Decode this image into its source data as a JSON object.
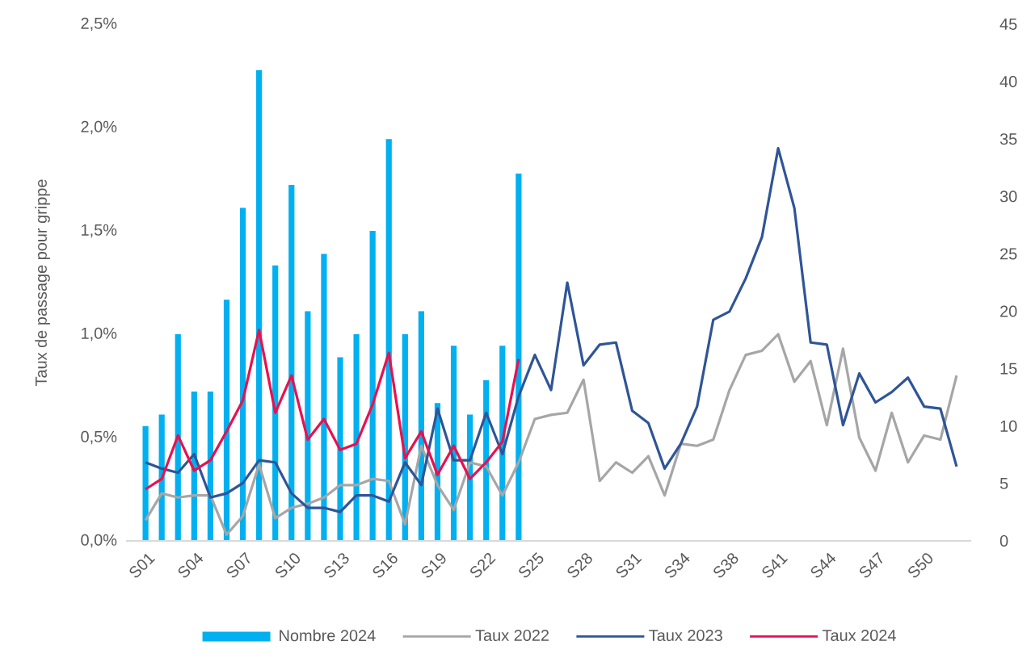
{
  "chart_data": {
    "type": "bar",
    "ylabel": "Taux de passage pour grippe",
    "categories": [
      "S01",
      null,
      null,
      "S04",
      null,
      null,
      "S07",
      null,
      null,
      "S10",
      null,
      null,
      "S13",
      null,
      null,
      "S16",
      null,
      null,
      "S19",
      null,
      null,
      "S22",
      null,
      null,
      "S25",
      null,
      null,
      "S28",
      null,
      null,
      "S31",
      null,
      null,
      "S34",
      null,
      null,
      "S38",
      null,
      null,
      "S41",
      null,
      null,
      "S44",
      null,
      null,
      "S47",
      null,
      null,
      "S50",
      null,
      null
    ],
    "ylim": [
      0,
      2.5
    ],
    "yticks": [
      {
        "value": 0,
        "label": "0,0%"
      },
      {
        "value": 0.5,
        "label": "0,5%"
      },
      {
        "value": 1.0,
        "label": "1,0%"
      },
      {
        "value": 1.5,
        "label": "1,5%"
      },
      {
        "value": 2.0,
        "label": "2,0%"
      },
      {
        "value": 2.5,
        "label": "2,5%"
      }
    ],
    "y2lim": [
      0,
      45
    ],
    "y2ticks": [
      0,
      5,
      10,
      15,
      20,
      25,
      30,
      35,
      40,
      45
    ],
    "legend": "bottom",
    "series": [
      {
        "name": "Nombre 2024",
        "axis": "y2",
        "color": "#00b0f0",
        "values": [
          10,
          11,
          18,
          13,
          13,
          21,
          29,
          41,
          24,
          31,
          20,
          25,
          16,
          18,
          27,
          35,
          18,
          20,
          12,
          17,
          11,
          14,
          17,
          32,
          null,
          null,
          null,
          null,
          null,
          null,
          null,
          null,
          null,
          null,
          null,
          null,
          null,
          null,
          null,
          null,
          null,
          null,
          null,
          null,
          null,
          null,
          null,
          null,
          null,
          null,
          null
        ]
      },
      {
        "name": "Taux 2022",
        "type": "line",
        "color": "#a6a6a6",
        "values": [
          0.1,
          0.23,
          0.21,
          0.22,
          0.22,
          0.03,
          0.12,
          0.37,
          0.11,
          0.16,
          0.18,
          0.21,
          0.27,
          0.27,
          0.3,
          0.29,
          0.08,
          0.46,
          0.27,
          0.15,
          0.38,
          0.36,
          0.22,
          0.38,
          0.59,
          0.61,
          0.62,
          0.78,
          0.29,
          0.38,
          0.33,
          0.41,
          0.22,
          0.47,
          0.46,
          0.49,
          0.73,
          0.9,
          0.92,
          1.0,
          0.77,
          0.87,
          0.56,
          0.93,
          0.5,
          0.34,
          0.62,
          0.38,
          0.51,
          0.49,
          0.8
        ]
      },
      {
        "name": "Taux 2023",
        "type": "line",
        "color": "#2f5597",
        "values": [
          0.38,
          0.35,
          0.33,
          0.42,
          0.21,
          0.23,
          0.28,
          0.39,
          0.38,
          0.23,
          0.16,
          0.16,
          0.14,
          0.22,
          0.22,
          0.19,
          0.38,
          0.27,
          0.64,
          0.39,
          0.39,
          0.62,
          0.42,
          0.7,
          0.9,
          0.73,
          1.25,
          0.85,
          0.95,
          0.96,
          0.63,
          0.57,
          0.35,
          0.47,
          0.65,
          1.07,
          1.11,
          1.27,
          1.47,
          1.9,
          1.61,
          0.96,
          0.95,
          0.56,
          0.81,
          0.67,
          0.72,
          0.79,
          0.65,
          0.64,
          0.36
        ]
      },
      {
        "name": "Taux 2024",
        "type": "line",
        "color": "#e8114f",
        "values": [
          0.25,
          0.3,
          0.51,
          0.34,
          0.39,
          0.53,
          0.68,
          1.02,
          0.62,
          0.8,
          0.49,
          0.59,
          0.44,
          0.47,
          0.66,
          0.91,
          0.4,
          0.53,
          0.32,
          0.46,
          0.3,
          0.38,
          0.48,
          0.88,
          null,
          null,
          null,
          null,
          null,
          null,
          null,
          null,
          null,
          null,
          null,
          null,
          null,
          null,
          null,
          null,
          null,
          null,
          null,
          null,
          null,
          null,
          null,
          null,
          null,
          null,
          null
        ]
      }
    ]
  }
}
